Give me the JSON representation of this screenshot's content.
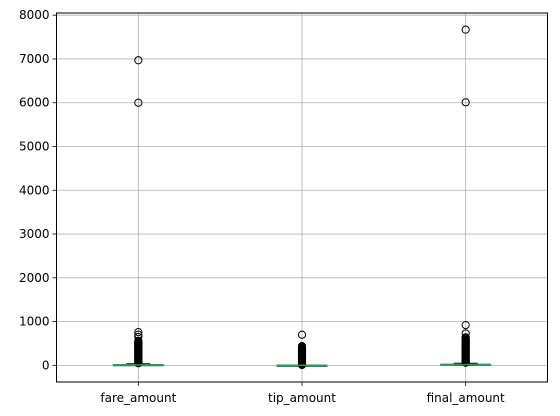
{
  "chart_data": {
    "type": "box",
    "title": "",
    "xlabel": "",
    "ylabel": "",
    "categories": [
      "fare_amount",
      "tip_amount",
      "final_amount"
    ],
    "ylim": [
      -380,
      8050
    ],
    "yticks": [
      0,
      1000,
      2000,
      3000,
      4000,
      5000,
      6000,
      7000,
      8000
    ],
    "grid": true,
    "boxes": [
      {
        "category": "fare_amount",
        "whisker_low": 0,
        "q1": 6,
        "median": 10,
        "q3": 18,
        "whisker_high": 36,
        "fliers": [
          48,
          60,
          75,
          90,
          105,
          120,
          135,
          150,
          165,
          180,
          195,
          210,
          225,
          240,
          255,
          270,
          285,
          300,
          315,
          330,
          345,
          360,
          375,
          390,
          405,
          420,
          435,
          450,
          465,
          480,
          495,
          510,
          525,
          540,
          560,
          650,
          700,
          760,
          6000,
          6970
        ]
      },
      {
        "category": "tip_amount",
        "whisker_low": 0,
        "q1": 0,
        "median": 2,
        "q3": 3,
        "whisker_high": 7,
        "fliers": [
          10,
          20,
          30,
          45,
          60,
          75,
          90,
          105,
          120,
          135,
          150,
          165,
          180,
          195,
          210,
          225,
          240,
          255,
          270,
          285,
          300,
          320,
          340,
          360,
          380,
          400,
          420,
          440,
          700
        ]
      },
      {
        "category": "final_amount",
        "whisker_low": 0,
        "q1": 12,
        "median": 17,
        "q3": 27,
        "whisker_high": 48,
        "fliers": [
          60,
          75,
          90,
          105,
          120,
          135,
          150,
          165,
          180,
          195,
          210,
          225,
          240,
          255,
          270,
          285,
          300,
          315,
          330,
          345,
          360,
          375,
          390,
          405,
          420,
          435,
          450,
          465,
          480,
          495,
          510,
          525,
          540,
          555,
          570,
          585,
          600,
          620,
          640,
          730,
          920,
          6010,
          7670
        ]
      }
    ],
    "colors": {
      "box": "#1f77b4",
      "whisker": "#000000",
      "median": "#2ca02c",
      "grid": "#b0b0b0",
      "flier_edge": "#000000"
    }
  }
}
